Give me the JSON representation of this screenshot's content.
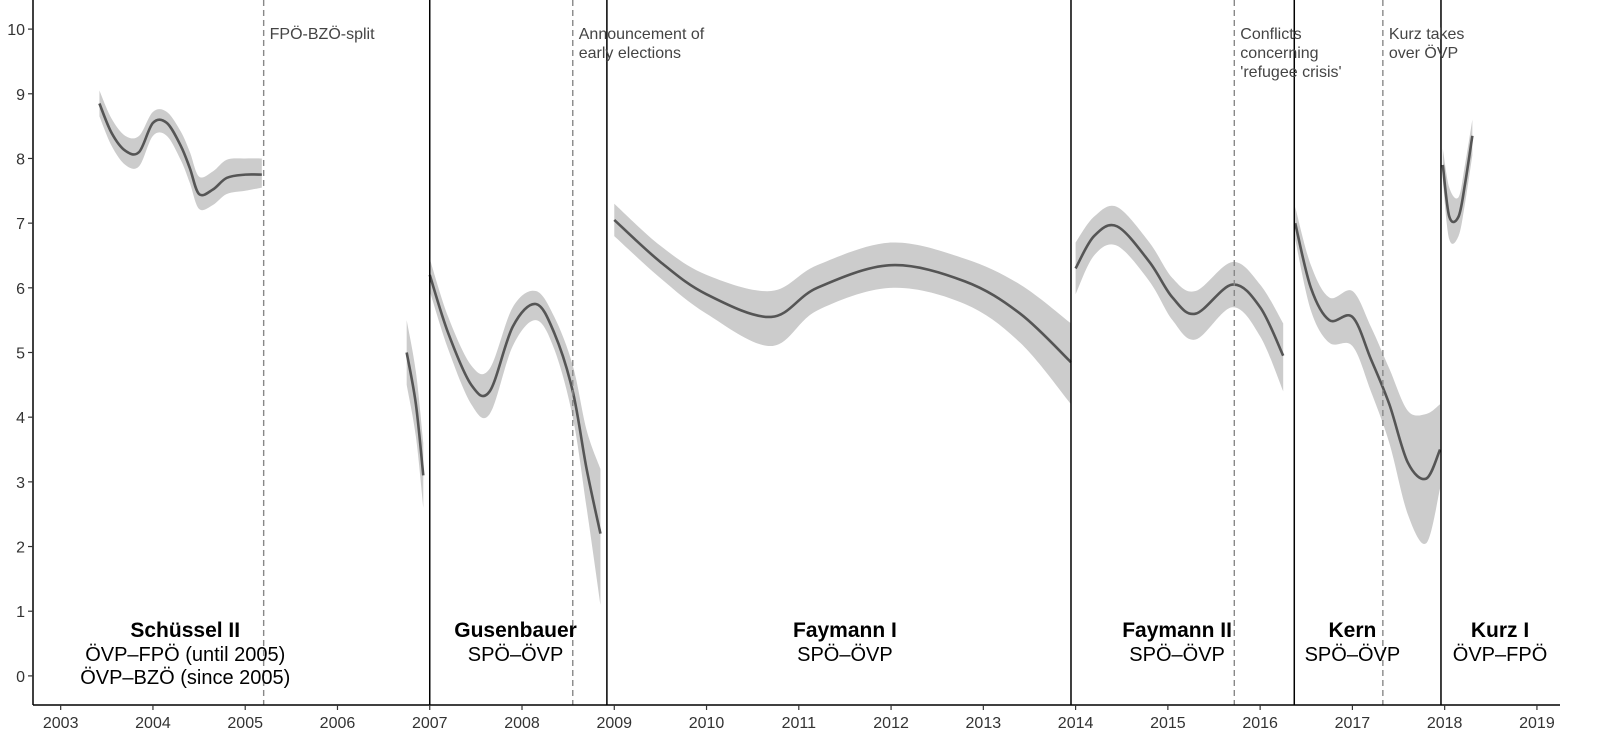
{
  "chart_data": {
    "type": "line",
    "title": "",
    "xlabel": "",
    "ylabel": "",
    "xlim": [
      2002.7,
      2019.25
    ],
    "ylim": [
      -0.45,
      10.45
    ],
    "x_ticks": [
      2003,
      2004,
      2005,
      2006,
      2007,
      2008,
      2009,
      2010,
      2011,
      2012,
      2013,
      2014,
      2015,
      2016,
      2017,
      2018,
      2019
    ],
    "y_ticks": [
      0,
      1,
      2,
      3,
      4,
      5,
      6,
      7,
      8,
      9,
      10
    ],
    "grid": false,
    "line_color": "#555555",
    "band_color": "#cccccc",
    "series": [
      {
        "points": [
          [
            2003.42,
            8.85
          ],
          [
            2003.55,
            8.4
          ],
          [
            2003.7,
            8.12
          ],
          [
            2003.85,
            8.1
          ],
          [
            2004.0,
            8.55
          ],
          [
            2004.15,
            8.55
          ],
          [
            2004.3,
            8.2
          ],
          [
            2004.4,
            7.85
          ],
          [
            2004.5,
            7.45
          ],
          [
            2004.65,
            7.52
          ],
          [
            2004.8,
            7.7
          ],
          [
            2005.0,
            7.75
          ],
          [
            2005.18,
            7.75
          ]
        ],
        "upper": [
          9.05,
          8.62,
          8.35,
          8.35,
          8.72,
          8.72,
          8.42,
          8.1,
          7.72,
          7.8,
          7.98,
          8.0,
          8.0
        ],
        "lower": [
          8.65,
          8.2,
          7.9,
          7.88,
          8.35,
          8.35,
          7.98,
          7.62,
          7.22,
          7.28,
          7.45,
          7.5,
          7.55
        ]
      },
      {
        "points": [
          [
            2006.75,
            5.0
          ],
          [
            2006.85,
            4.2
          ],
          [
            2006.93,
            3.1
          ]
        ],
        "upper": [
          5.5,
          4.7,
          3.6
        ],
        "lower": [
          4.5,
          3.7,
          2.6
        ]
      },
      {
        "points": [
          [
            2007.0,
            6.2
          ],
          [
            2007.2,
            5.3
          ],
          [
            2007.45,
            4.5
          ],
          [
            2007.65,
            4.4
          ],
          [
            2007.9,
            5.4
          ],
          [
            2008.15,
            5.75
          ],
          [
            2008.35,
            5.3
          ],
          [
            2008.55,
            4.4
          ],
          [
            2008.7,
            3.2
          ],
          [
            2008.85,
            2.2
          ]
        ],
        "upper": [
          6.45,
          5.55,
          4.8,
          4.75,
          5.7,
          5.95,
          5.55,
          4.8,
          3.8,
          3.2
        ],
        "lower": [
          5.95,
          5.05,
          4.2,
          4.05,
          5.1,
          5.5,
          5.05,
          4.0,
          2.6,
          1.1
        ]
      },
      {
        "points": [
          [
            2009.0,
            7.05
          ],
          [
            2009.5,
            6.4
          ],
          [
            2010.0,
            5.9
          ],
          [
            2010.7,
            5.55
          ],
          [
            2011.2,
            6.0
          ],
          [
            2012.0,
            6.35
          ],
          [
            2012.8,
            6.1
          ],
          [
            2013.4,
            5.6
          ],
          [
            2013.95,
            4.85
          ]
        ],
        "upper": [
          7.3,
          6.65,
          6.2,
          5.95,
          6.35,
          6.7,
          6.45,
          6.05,
          5.45
        ],
        "lower": [
          6.8,
          6.15,
          5.6,
          5.1,
          5.65,
          6.0,
          5.75,
          5.15,
          4.2
        ]
      },
      {
        "points": [
          [
            2014.0,
            6.3
          ],
          [
            2014.2,
            6.8
          ],
          [
            2014.45,
            6.95
          ],
          [
            2014.8,
            6.4
          ],
          [
            2015.05,
            5.85
          ],
          [
            2015.3,
            5.6
          ],
          [
            2015.7,
            6.05
          ],
          [
            2016.0,
            5.7
          ],
          [
            2016.25,
            4.95
          ]
        ],
        "upper": [
          6.7,
          7.1,
          7.25,
          6.7,
          6.15,
          5.95,
          6.4,
          6.05,
          5.45
        ],
        "lower": [
          5.9,
          6.5,
          6.65,
          6.1,
          5.5,
          5.2,
          5.7,
          5.25,
          4.4
        ]
      },
      {
        "points": [
          [
            2016.38,
            7.0
          ],
          [
            2016.55,
            6.0
          ],
          [
            2016.75,
            5.5
          ],
          [
            2017.0,
            5.55
          ],
          [
            2017.2,
            4.9
          ],
          [
            2017.4,
            4.2
          ],
          [
            2017.6,
            3.3
          ],
          [
            2017.8,
            3.05
          ],
          [
            2017.95,
            3.5
          ]
        ],
        "upper": [
          7.25,
          6.35,
          5.85,
          5.95,
          5.4,
          4.75,
          4.1,
          4.05,
          4.2
        ],
        "lower": [
          6.75,
          5.65,
          5.15,
          5.1,
          4.4,
          3.6,
          2.5,
          2.05,
          2.9
        ]
      },
      {
        "points": [
          [
            2017.98,
            7.9
          ],
          [
            2018.05,
            7.1
          ],
          [
            2018.15,
            7.1
          ],
          [
            2018.22,
            7.6
          ],
          [
            2018.3,
            8.35
          ]
        ],
        "upper": [
          8.15,
          7.55,
          7.4,
          7.9,
          8.6
        ],
        "lower": [
          7.65,
          6.75,
          6.8,
          7.3,
          8.05
        ]
      }
    ],
    "government_boundaries": [
      2007.0,
      2008.92,
      2013.95,
      2016.37,
      2017.96
    ],
    "events": [
      {
        "x": 2005.2,
        "label_lines": [
          "FPÖ-BZÖ-split"
        ]
      },
      {
        "x": 2008.55,
        "label_lines": [
          "Announcement of",
          "early elections"
        ]
      },
      {
        "x": 2015.72,
        "label_lines": [
          "Conflicts",
          "concerning",
          "'refugee crisis'"
        ]
      },
      {
        "x": 2017.33,
        "label_lines": [
          "Kurz takes",
          "over ÖVP"
        ]
      }
    ],
    "governments": [
      {
        "x": 2004.35,
        "name": "Schüssel II",
        "coalition_lines": [
          "ÖVP–FPÖ (until 2005)",
          "ÖVP–BZÖ (since 2005)"
        ]
      },
      {
        "x": 2007.93,
        "name": "Gusenbauer",
        "coalition_lines": [
          "SPÖ–ÖVP"
        ]
      },
      {
        "x": 2011.5,
        "name": "Faymann I",
        "coalition_lines": [
          "SPÖ–ÖVP"
        ]
      },
      {
        "x": 2015.1,
        "name": "Faymann II",
        "coalition_lines": [
          "SPÖ–ÖVP"
        ]
      },
      {
        "x": 2017.0,
        "name": "Kern",
        "coalition_lines": [
          "SPÖ–ÖVP"
        ]
      },
      {
        "x": 2018.6,
        "name": "Kurz I",
        "coalition_lines": [
          "ÖVP–FPÖ"
        ]
      }
    ]
  }
}
